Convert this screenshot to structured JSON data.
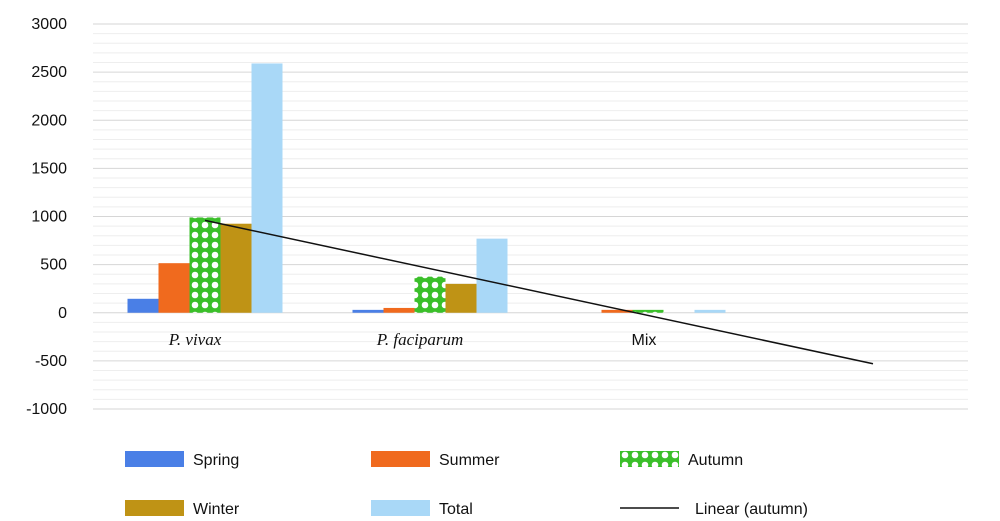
{
  "chart_data": {
    "type": "bar",
    "categories": [
      "P. vivax",
      "P. faciparum",
      "Mix"
    ],
    "category_styles": [
      "italic",
      "italic",
      "plain"
    ],
    "series": [
      {
        "name": "Spring",
        "values": [
          145,
          30,
          0
        ],
        "color": "#4a7fe6",
        "pattern": "solid"
      },
      {
        "name": "Summer",
        "values": [
          515,
          50,
          30
        ],
        "color": "#f06a1e",
        "pattern": "solid"
      },
      {
        "name": "Autumn",
        "values": [
          990,
          375,
          30
        ],
        "color": "#3bbf2a",
        "pattern": "checker"
      },
      {
        "name": "Winter",
        "values": [
          925,
          300,
          0
        ],
        "color": "#bf9315",
        "pattern": "solid"
      },
      {
        "name": "Total",
        "values": [
          2590,
          770,
          30
        ],
        "color": "#a9d8f7",
        "pattern": "solid"
      }
    ],
    "trendline": {
      "name": "Linear (autumn)",
      "start_value": 960,
      "end_value": -530,
      "color": "#111111"
    },
    "ylim": [
      -1000,
      3000
    ],
    "yticks": [
      -1000,
      -500,
      0,
      500,
      1000,
      1500,
      2000,
      2500,
      3000
    ],
    "grid": true,
    "legend_position": "bottom",
    "title": "",
    "xlabel": "",
    "ylabel": ""
  }
}
